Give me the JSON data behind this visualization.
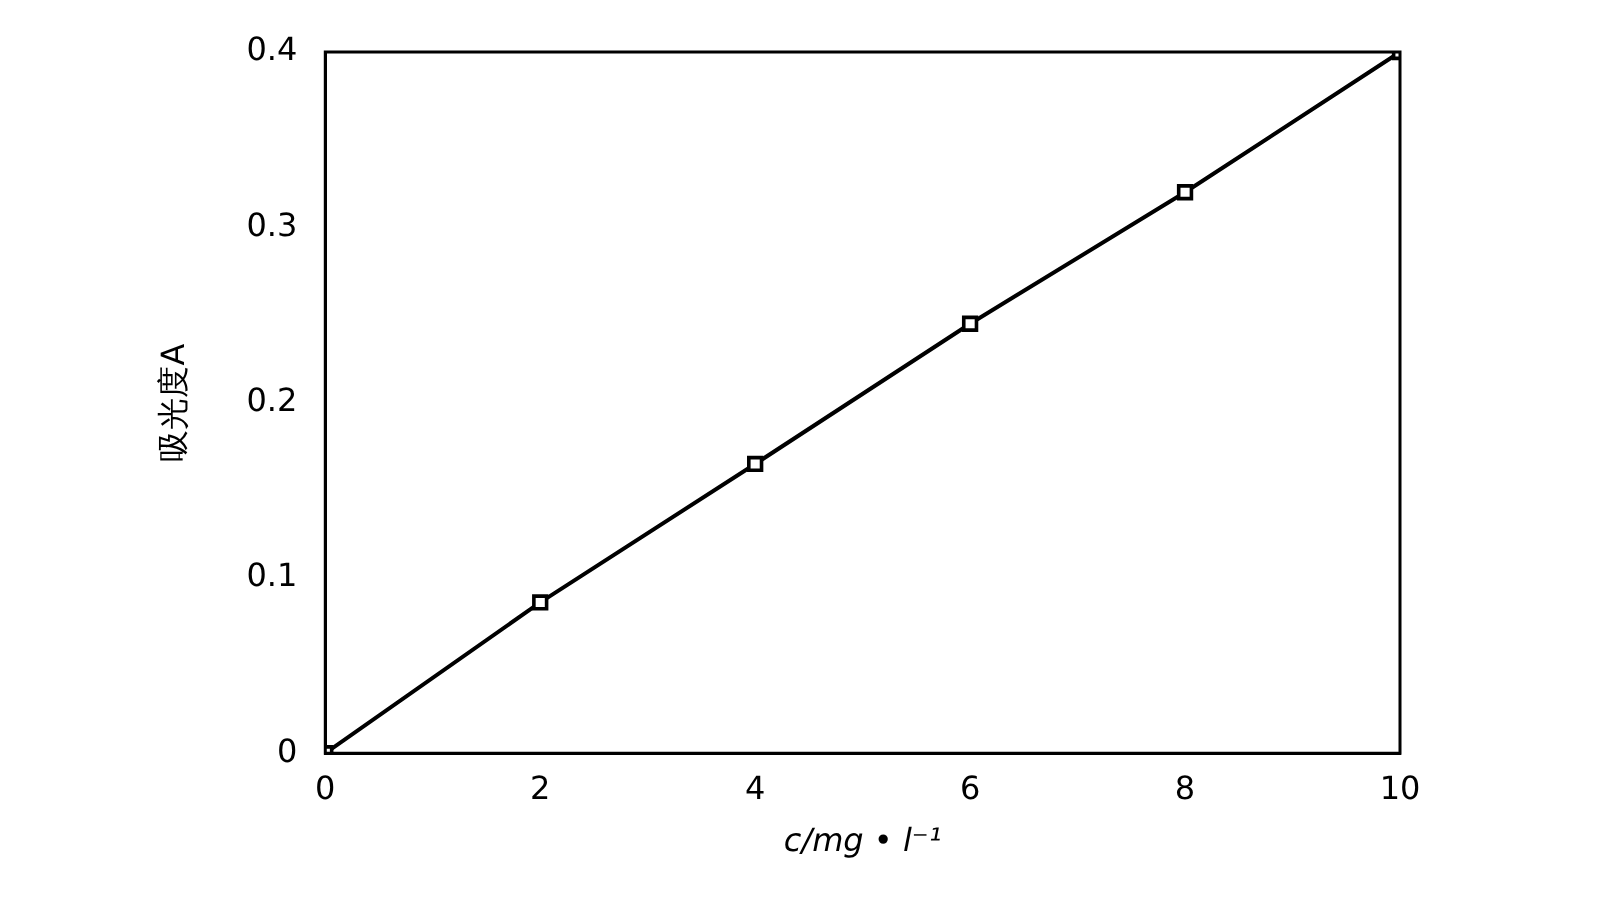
{
  "chart_data": {
    "type": "line",
    "xlabel": "c/mg • l⁻¹",
    "ylabel": "吸光度A",
    "x": [
      0,
      2,
      4,
      6,
      8,
      10
    ],
    "series": [
      {
        "color": "#000000",
        "values": [
          0,
          0.086,
          0.165,
          0.245,
          0.32,
          0.4
        ]
      }
    ],
    "xlim": [
      0,
      10
    ],
    "xticks": [
      0,
      2,
      4,
      6,
      8,
      10
    ],
    "ylim": [
      0,
      0.4
    ],
    "yticks": [
      0,
      0.1,
      0.2,
      0.3,
      0.4
    ],
    "grid": false,
    "legend": false,
    "marker": "square",
    "line_style": "solid"
  }
}
